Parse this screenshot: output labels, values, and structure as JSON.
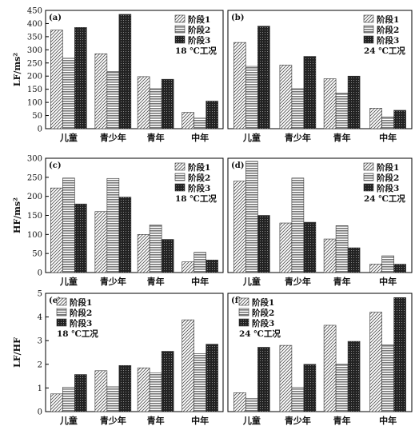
{
  "chart_data": [
    {
      "panel": "(a)",
      "type": "bar",
      "ylabel": "LF/ms²",
      "ylim": [
        0,
        450
      ],
      "yticks": [
        0,
        50,
        100,
        150,
        200,
        250,
        300,
        350,
        400,
        450
      ],
      "categories": [
        "儿童",
        "青少年",
        "青年",
        "中年"
      ],
      "series": [
        {
          "name": "阶段1",
          "values": [
            375,
            285,
            198,
            62
          ]
        },
        {
          "name": "阶段2",
          "values": [
            268,
            218,
            152,
            40
          ]
        },
        {
          "name": "阶段3",
          "values": [
            385,
            435,
            188,
            105
          ]
        }
      ],
      "annotation": "18 ℃工况",
      "legend_position": "top-right",
      "grid": false
    },
    {
      "panel": "(b)",
      "type": "bar",
      "ylabel": "",
      "ylim": [
        0,
        450
      ],
      "yticks": [],
      "categories": [
        "儿童",
        "青少年",
        "青年",
        "中年"
      ],
      "series": [
        {
          "name": "阶段1",
          "values": [
            328,
            242,
            190,
            78
          ]
        },
        {
          "name": "阶段2",
          "values": [
            237,
            152,
            135,
            45
          ]
        },
        {
          "name": "阶段3",
          "values": [
            390,
            275,
            200,
            70
          ]
        }
      ],
      "annotation": "24 ℃工况",
      "legend_position": "top-right",
      "grid": false
    },
    {
      "panel": "(c)",
      "type": "bar",
      "ylabel": "HF/ms²",
      "ylim": [
        0,
        300
      ],
      "yticks": [
        0,
        50,
        100,
        150,
        200,
        250,
        300
      ],
      "categories": [
        "儿童",
        "青少年",
        "青年",
        "中年"
      ],
      "series": [
        {
          "name": "阶段1",
          "values": [
            222,
            160,
            100,
            28
          ]
        },
        {
          "name": "阶段2",
          "values": [
            248,
            247,
            125,
            53
          ]
        },
        {
          "name": "阶段3",
          "values": [
            180,
            198,
            87,
            33
          ]
        }
      ],
      "annotation": "18 ℃工况",
      "legend_position": "top-right",
      "grid": false
    },
    {
      "panel": "(d)",
      "type": "bar",
      "ylabel": "",
      "ylim": [
        0,
        300
      ],
      "yticks": [],
      "categories": [
        "儿童",
        "青少年",
        "青年",
        "中年"
      ],
      "series": [
        {
          "name": "阶段1",
          "values": [
            240,
            130,
            88,
            22
          ]
        },
        {
          "name": "阶段2",
          "values": [
            292,
            248,
            123,
            44
          ]
        },
        {
          "name": "阶段3",
          "values": [
            150,
            132,
            65,
            22
          ]
        }
      ],
      "annotation": "24 ℃工况",
      "legend_position": "top-right",
      "grid": false
    },
    {
      "panel": "(e)",
      "type": "bar",
      "ylabel": "LF/HF",
      "ylim": [
        0,
        5
      ],
      "yticks": [
        0,
        1,
        2,
        3,
        4,
        5
      ],
      "categories": [
        "儿童",
        "青少年",
        "青年",
        "中年"
      ],
      "series": [
        {
          "name": "阶段1",
          "values": [
            0.75,
            1.73,
            1.85,
            3.88
          ]
        },
        {
          "name": "阶段2",
          "values": [
            1.03,
            1.05,
            1.63,
            2.45
          ]
        },
        {
          "name": "阶段3",
          "values": [
            1.57,
            1.95,
            2.55,
            2.85
          ]
        }
      ],
      "annotation": "18 ℃工况",
      "legend_position": "top-left",
      "grid": false
    },
    {
      "panel": "(f)",
      "type": "bar",
      "ylabel": "",
      "ylim": [
        0,
        5
      ],
      "yticks": [],
      "categories": [
        "儿童",
        "青少年",
        "青年",
        "中年"
      ],
      "series": [
        {
          "name": "阶段1",
          "values": [
            0.8,
            2.8,
            3.65,
            4.2
          ]
        },
        {
          "name": "阶段2",
          "values": [
            0.55,
            1.02,
            2.0,
            2.82
          ]
        },
        {
          "name": "阶段3",
          "values": [
            2.72,
            2.0,
            2.97,
            4.82
          ]
        }
      ],
      "annotation": "24 ℃工况",
      "legend_position": "top-left",
      "grid": false
    }
  ]
}
